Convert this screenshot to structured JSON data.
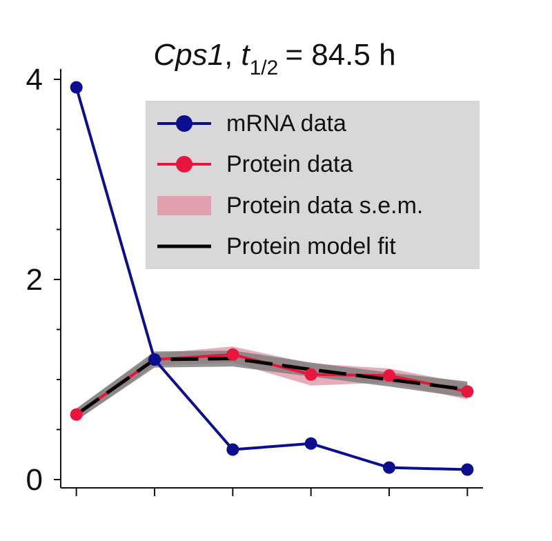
{
  "chart_data": {
    "type": "line",
    "title": {
      "gene": "Cps1",
      "separator": ",",
      "symbol": "t",
      "subscript": "1/2",
      "value": "= 84.5 h"
    },
    "xlabel": "",
    "ylabel": "",
    "x": [
      1,
      2,
      3,
      4,
      5,
      6
    ],
    "xlim": [
      0.8,
      6.2
    ],
    "ylim": [
      0,
      4
    ],
    "y_ticks": {
      "major": [
        0,
        2,
        4
      ],
      "major_labels": [
        "0",
        "2",
        "4"
      ],
      "minor": [
        0.5,
        1,
        1.5,
        2.5,
        3,
        3.5
      ]
    },
    "grid": false,
    "legend": {
      "placement": "top-right",
      "background": "#d8d8d8",
      "entries": [
        {
          "label": "mRNA data",
          "kind": "line-marker",
          "color": "#0b0f8f"
        },
        {
          "label": "Protein data",
          "kind": "line-marker",
          "color": "#e8163c"
        },
        {
          "label": "Protein data s.e.m.",
          "kind": "band",
          "color": "#e0a0ae"
        },
        {
          "label": "Protein model fit",
          "kind": "line",
          "color": "#000000"
        }
      ]
    },
    "series": [
      {
        "name": "mRNA data",
        "color": "#0b0f8f",
        "values": [
          3.92,
          1.2,
          0.3,
          0.36,
          0.12,
          0.1
        ]
      },
      {
        "name": "Protein data",
        "color": "#e8163c",
        "values": [
          0.65,
          1.2,
          1.25,
          1.05,
          1.04,
          0.88
        ]
      },
      {
        "name": "Protein data s.e.m.",
        "color": "#e0a0ae",
        "lower": [
          0.59,
          1.14,
          1.17,
          0.94,
          0.97,
          0.8
        ],
        "upper": [
          0.71,
          1.26,
          1.33,
          1.16,
          1.11,
          0.96
        ]
      },
      {
        "name": "Protein model fit",
        "color": "#000000",
        "band_color": "#7a7a7a",
        "values": [
          0.65,
          1.2,
          1.21,
          1.1,
          1.0,
          0.9
        ],
        "lower": [
          0.59,
          1.12,
          1.13,
          1.03,
          0.93,
          0.82
        ],
        "upper": [
          0.71,
          1.28,
          1.29,
          1.17,
          1.07,
          0.98
        ]
      }
    ]
  }
}
